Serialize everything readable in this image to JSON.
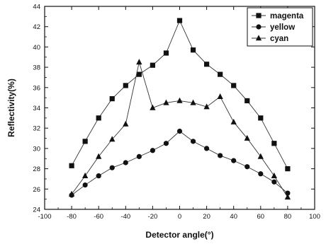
{
  "chart_data": {
    "type": "line",
    "xlabel": "Detector angle(°)",
    "ylabel": "Reflectivity(%)",
    "xlim": [
      -100,
      100
    ],
    "ylim": [
      24,
      44
    ],
    "xticks": [
      -100,
      -80,
      -60,
      -40,
      -20,
      0,
      20,
      40,
      60,
      80,
      100
    ],
    "yticks": [
      24,
      26,
      28,
      30,
      32,
      34,
      36,
      38,
      40,
      42,
      44
    ],
    "grid": false,
    "legend_position": "top-right",
    "x": [
      -80,
      -70,
      -60,
      -50,
      -40,
      -30,
      -20,
      -10,
      0,
      10,
      20,
      30,
      40,
      50,
      60,
      70,
      80
    ],
    "series": [
      {
        "name": "magenta",
        "marker": "square",
        "values": [
          28.3,
          30.7,
          33.0,
          34.9,
          36.2,
          37.3,
          38.2,
          39.4,
          42.6,
          39.7,
          38.3,
          37.3,
          36.2,
          34.7,
          33.0,
          30.5,
          28.0
        ]
      },
      {
        "name": "yellow",
        "marker": "circle",
        "values": [
          25.4,
          26.4,
          27.3,
          28.1,
          28.6,
          29.2,
          29.8,
          30.5,
          31.7,
          30.7,
          30.0,
          29.3,
          28.8,
          28.2,
          27.5,
          26.7,
          25.6
        ]
      },
      {
        "name": "cyan",
        "marker": "triangle",
        "values": [
          25.5,
          27.3,
          29.2,
          30.9,
          32.4,
          38.5,
          34.0,
          34.5,
          34.7,
          34.5,
          34.1,
          35.1,
          32.6,
          31.0,
          29.2,
          27.3,
          25.2
        ]
      }
    ]
  }
}
